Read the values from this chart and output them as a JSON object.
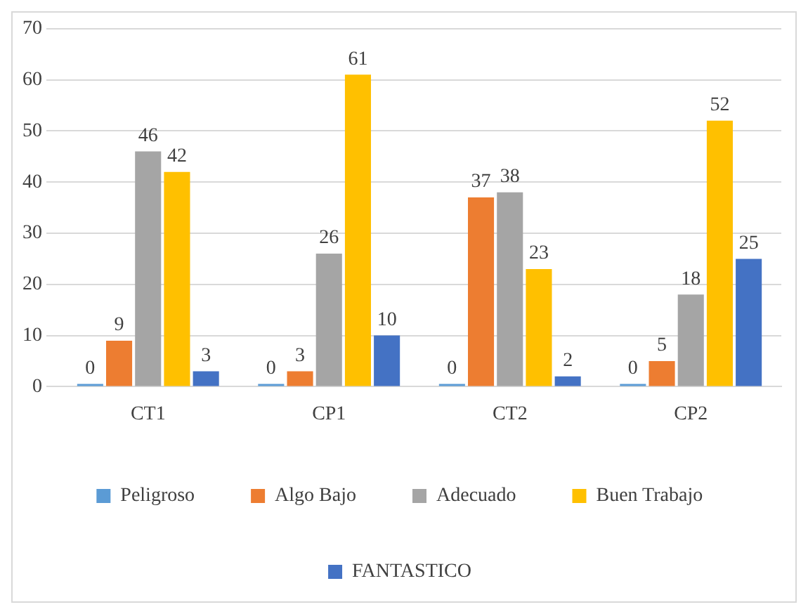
{
  "chart_data": {
    "type": "bar",
    "categories": [
      "CT1",
      "CP1",
      "CT2",
      "CP2"
    ],
    "series": [
      {
        "name": "Peligroso",
        "color": "#5b9bd5",
        "values": [
          0,
          0,
          0,
          0
        ]
      },
      {
        "name": "Algo Bajo",
        "color": "#ed7d31",
        "values": [
          9,
          3,
          37,
          5
        ]
      },
      {
        "name": "Adecuado",
        "color": "#a5a5a5",
        "values": [
          46,
          26,
          38,
          18
        ]
      },
      {
        "name": "Buen Trabajo",
        "color": "#ffc000",
        "values": [
          42,
          61,
          23,
          52
        ]
      },
      {
        "name": "FANTASTICO",
        "color": "#4472c4",
        "values": [
          3,
          10,
          2,
          25
        ]
      }
    ],
    "ylim": [
      0,
      70
    ],
    "yticks": [
      0,
      10,
      20,
      30,
      40,
      50,
      60,
      70
    ],
    "grid": "y",
    "legend": "bottom",
    "data_labels": true
  }
}
